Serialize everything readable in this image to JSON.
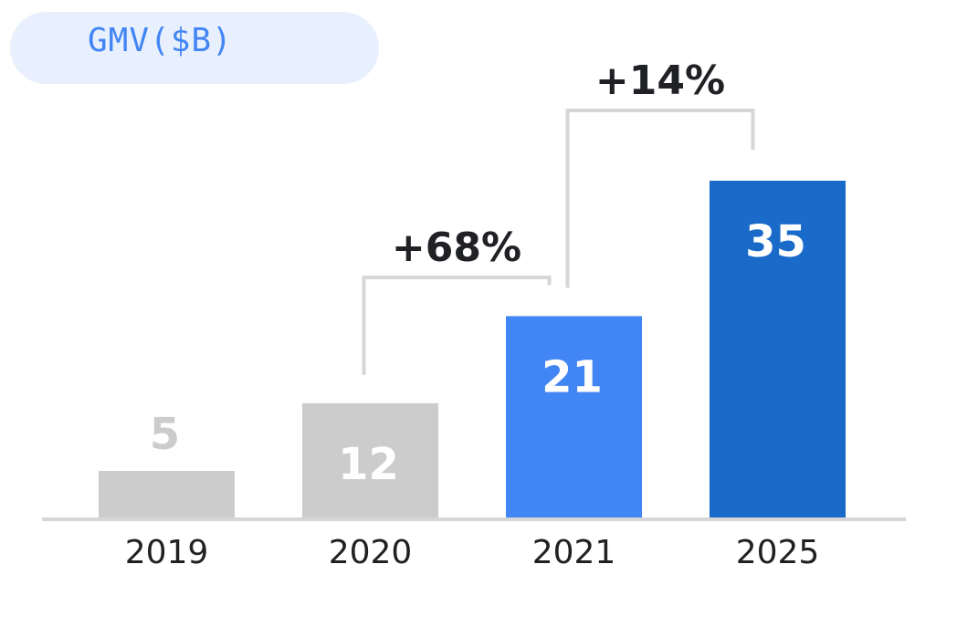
{
  "title": "GMV($B)",
  "chart_data": {
    "type": "bar",
    "title": "GMV($B)",
    "xlabel": "",
    "ylabel": "",
    "ylim": [
      0,
      35
    ],
    "categories": [
      "2019",
      "2020",
      "2021",
      "2025"
    ],
    "values": [
      5,
      12,
      21,
      35
    ],
    "value_labels": [
      "5",
      "12",
      "21",
      "35"
    ],
    "bar_colors": [
      "#cccccc",
      "#cccccc",
      "#4285f4",
      "#1a6bc9"
    ],
    "value_label_colors": [
      "#cccccc",
      "#ffffff",
      "#ffffff",
      "#ffffff"
    ],
    "value_label_position": [
      "above",
      "inside",
      "inside",
      "inside"
    ],
    "annotations": [
      {
        "label": "+68%",
        "from": "2020",
        "to": "2021"
      },
      {
        "label": "+14%",
        "from": "2021",
        "to": "2025"
      }
    ],
    "axis_color": "#d6d6d6",
    "bracket_color": "#d6d6d6",
    "grid": false,
    "legend": "none"
  }
}
